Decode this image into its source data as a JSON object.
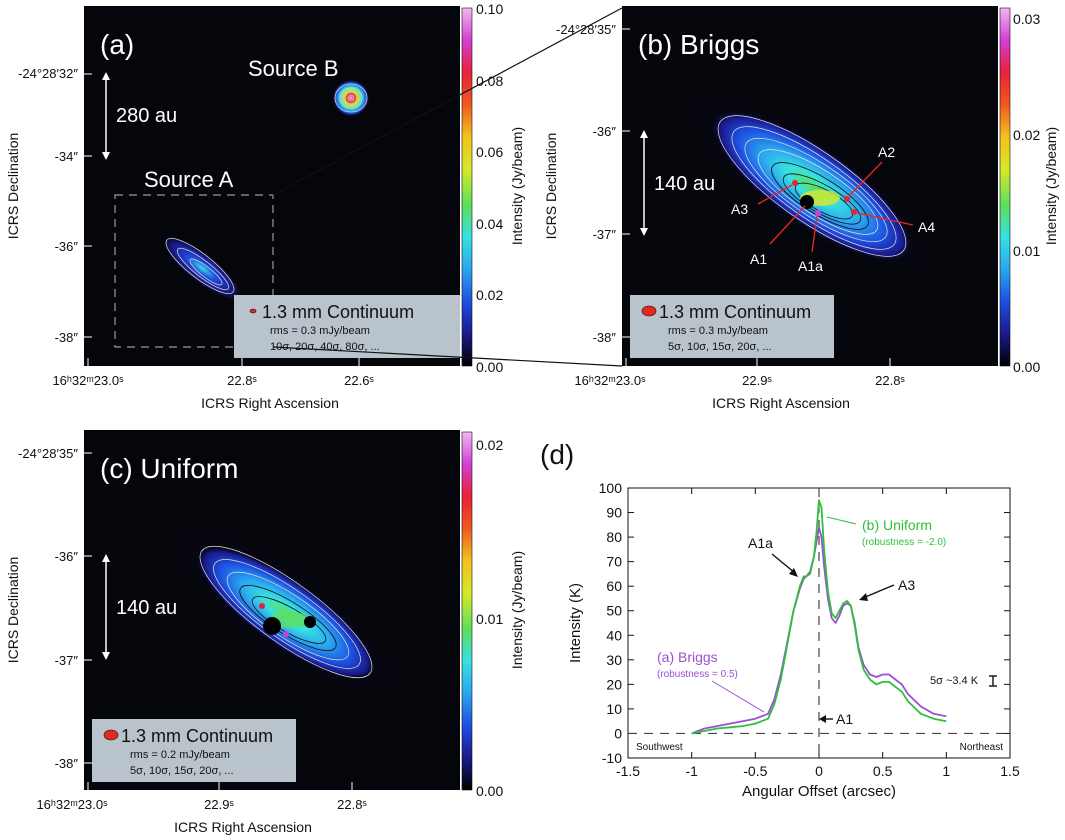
{
  "colors": {
    "panel_bg": "#05060c",
    "legend_box": "#b9c3cc",
    "beam": "#e8281e",
    "briggs": "#9a4fd6",
    "uniform": "#2fbf3a",
    "dash": "#444444"
  },
  "colorbar": {
    "stops": [
      "#000000",
      "#1a1a8c",
      "#1e4fe0",
      "#2aa7f0",
      "#39e0e0",
      "#5ce05a",
      "#d8e82a",
      "#f2c21e",
      "#ef5a1f",
      "#e8213a",
      "#d23fd2",
      "#f2b8f2"
    ]
  },
  "panel_a": {
    "label": "(a)",
    "dec_ticks": [
      "-24°28′32″",
      "-34″",
      "-36″",
      "-38″"
    ],
    "ra_ticks": [
      "16ʰ32ᵐ23.0ˢ",
      "22.8ˢ",
      "22.6ˢ"
    ],
    "xlabel": "ICRS Right Ascension",
    "ylabel": "ICRS Declination",
    "scalebar": "280 au",
    "source_a": "Source A",
    "source_b": "Source B",
    "colorbar_label": "Intensity (Jy/beam)",
    "colorbar_ticks": [
      "0.10",
      "0.08",
      "0.06",
      "0.04",
      "0.02",
      "0.00"
    ],
    "colorbar_values": [
      0.1,
      0.08,
      0.06,
      0.04,
      0.02,
      0.0
    ],
    "legend": {
      "title": "1.3 mm Continuum",
      "rms": "rms = 0.3 mJy/beam",
      "levels": "10σ, 20σ, 40σ, 80σ, ..."
    }
  },
  "panel_b": {
    "label": "(b) Briggs",
    "dec_ticks": [
      "-24°28′35″",
      "-36″",
      "-37″",
      "-38″"
    ],
    "ra_ticks": [
      "16ʰ32ᵐ23.0ˢ",
      "22.9ˢ",
      "22.8ˢ"
    ],
    "xlabel": "ICRS Right Ascension",
    "ylabel": "ICRS Declination",
    "scalebar": "140 au",
    "peaks": [
      "A1",
      "A1a",
      "A2",
      "A3",
      "A4"
    ],
    "colorbar_label": "Intensity (Jy/beam)",
    "colorbar_ticks": [
      "0.03",
      "0.02",
      "0.01",
      "0.00"
    ],
    "colorbar_values": [
      0.03,
      0.02,
      0.01,
      0.0
    ],
    "legend": {
      "title": "1.3 mm Continuum",
      "rms": "rms = 0.3 mJy/beam",
      "levels": "5σ, 10σ, 15σ, 20σ, ..."
    }
  },
  "panel_c": {
    "label": "(c) Uniform",
    "dec_ticks": [
      "-24°28′35″",
      "-36″",
      "-37″",
      "-38″"
    ],
    "ra_ticks": [
      "16ʰ32ᵐ23.0ˢ",
      "22.9ˢ",
      "22.8ˢ"
    ],
    "xlabel": "ICRS Right Ascension",
    "ylabel": "ICRS Declination",
    "scalebar": "140 au",
    "colorbar_label": "Intensity (Jy/beam)",
    "colorbar_ticks": [
      "0.02",
      "0.01",
      "0.00"
    ],
    "colorbar_values": [
      0.02,
      0.01,
      0.0
    ],
    "legend": {
      "title": "1.3 mm Continuum",
      "rms": "rms = 0.2 mJy/beam",
      "levels": "5σ, 10σ, 15σ, 20σ, ..."
    }
  },
  "chart_data": {
    "type": "line",
    "panel_label": "(d)",
    "title": "",
    "xlabel": "Angular Offset (arcsec)",
    "ylabel": "Intensity (K)",
    "xlim": [
      -1.5,
      1.5
    ],
    "ylim": [
      -10,
      100
    ],
    "xticks": [
      -1.5,
      -1,
      -0.5,
      0,
      0.5,
      1,
      1.5
    ],
    "xtick_labels": [
      "-1.5",
      "-1",
      "-0.5",
      "0",
      "0.5",
      "1",
      "1.5"
    ],
    "yticks": [
      -10,
      0,
      10,
      20,
      30,
      40,
      50,
      60,
      70,
      80,
      90,
      100
    ],
    "ytick_labels": [
      "-10",
      "0",
      "10",
      "20",
      "30",
      "40",
      "50",
      "60",
      "70",
      "80",
      "90",
      "100"
    ],
    "x": [
      -1.0,
      -0.9,
      -0.8,
      -0.7,
      -0.6,
      -0.5,
      -0.4,
      -0.35,
      -0.3,
      -0.25,
      -0.2,
      -0.15,
      -0.12,
      -0.1,
      -0.07,
      -0.04,
      -0.02,
      0.0,
      0.02,
      0.04,
      0.07,
      0.1,
      0.13,
      0.16,
      0.19,
      0.22,
      0.25,
      0.28,
      0.31,
      0.35,
      0.4,
      0.45,
      0.5,
      0.55,
      0.6,
      0.65,
      0.7,
      0.8,
      0.9,
      1.0
    ],
    "series": [
      {
        "name": "(a) Briggs",
        "note": "(robustness = 0.5)",
        "color": "#9a4fd6",
        "values": [
          0,
          2,
          3,
          4,
          5,
          6,
          8,
          14,
          24,
          37,
          50,
          59,
          63,
          64,
          66,
          72,
          78,
          84,
          80,
          68,
          55,
          47,
          45,
          48,
          52,
          53,
          52,
          45,
          35,
          28,
          24,
          23,
          24,
          24,
          22,
          20,
          16,
          11,
          8,
          7
        ]
      },
      {
        "name": "(b) Uniform",
        "note": "(robustness = -2.0)",
        "color": "#2fbf3a",
        "values": [
          0,
          1,
          2,
          2.5,
          3,
          4,
          6,
          12,
          22,
          36,
          50,
          60,
          64,
          64,
          65,
          72,
          82,
          95,
          92,
          75,
          58,
          49,
          47,
          50,
          53,
          54,
          52,
          44,
          34,
          26,
          22,
          20,
          21,
          21,
          19,
          17,
          13,
          8,
          6,
          5
        ]
      }
    ],
    "annotations": {
      "a1a": "A1a",
      "a3": "A3",
      "a1": "A1",
      "southwest": "Southwest",
      "northeast": "Northeast",
      "noise": "5σ ~3.4 K"
    },
    "reference_lines": {
      "x": 0,
      "y": 0
    }
  }
}
